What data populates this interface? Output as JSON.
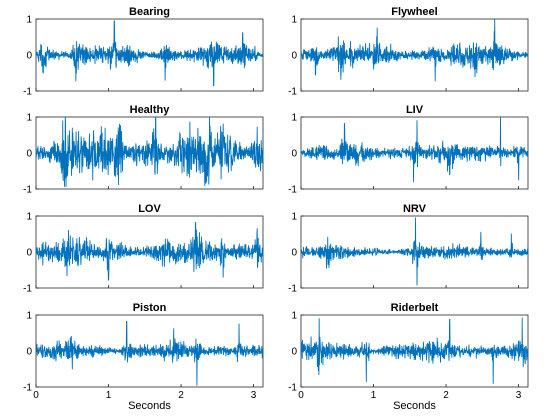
{
  "chart_data": {
    "type": "line",
    "signal_color": "#0072BD",
    "x_ticks": [
      "0",
      "1",
      "2",
      "3"
    ],
    "y_ticks": [
      "-1",
      "0",
      "1"
    ],
    "xlim": [
      0,
      3.13
    ],
    "ylim": [
      -1,
      1
    ],
    "xlabel": "Seconds",
    "grid": false,
    "panels": [
      {
        "title": "Bearing",
        "amplitude": 0.18,
        "spikes": [
          [
            1.08,
            0.95
          ],
          [
            0.55,
            -0.72
          ],
          [
            1.78,
            -0.7
          ],
          [
            2.45,
            -0.85
          ],
          [
            2.85,
            0.62
          ],
          [
            0.1,
            -0.5
          ]
        ]
      },
      {
        "title": "Flywheel",
        "amplitude": 0.2,
        "spikes": [
          [
            2.67,
            0.98
          ],
          [
            0.55,
            -0.68
          ],
          [
            1.05,
            0.75
          ],
          [
            1.85,
            -0.72
          ],
          [
            2.4,
            -0.6
          ],
          [
            0.2,
            -0.55
          ]
        ]
      },
      {
        "title": "Healthy",
        "amplitude": 0.42,
        "spikes": [
          [
            1.65,
            0.98
          ],
          [
            2.35,
            -0.8
          ],
          [
            0.4,
            -0.7
          ],
          [
            1.15,
            0.8
          ],
          [
            3.05,
            0.72
          ]
        ]
      },
      {
        "title": "LIV",
        "amplitude": 0.17,
        "spikes": [
          [
            0.6,
            0.82
          ],
          [
            1.6,
            0.9
          ],
          [
            1.55,
            -0.8
          ],
          [
            2.75,
            0.98
          ],
          [
            3.0,
            -0.75
          ],
          [
            2.05,
            -0.6
          ]
        ]
      },
      {
        "title": "LOV",
        "amplitude": 0.24,
        "spikes": [
          [
            1.0,
            -0.78
          ],
          [
            2.2,
            0.82
          ],
          [
            2.58,
            -0.7
          ],
          [
            0.45,
            0.6
          ],
          [
            3.05,
            0.65
          ]
        ]
      },
      {
        "title": "NRV",
        "amplitude": 0.12,
        "spikes": [
          [
            1.58,
            0.95
          ],
          [
            1.6,
            -0.92
          ],
          [
            0.35,
            -0.45
          ],
          [
            2.48,
            0.55
          ],
          [
            2.9,
            0.5
          ]
        ]
      },
      {
        "title": "Piston",
        "amplitude": 0.15,
        "spikes": [
          [
            1.25,
            0.82
          ],
          [
            2.22,
            -0.95
          ],
          [
            1.9,
            0.62
          ],
          [
            0.5,
            -0.5
          ],
          [
            2.8,
            0.75
          ]
        ]
      },
      {
        "title": "Riderbelt",
        "amplitude": 0.17,
        "spikes": [
          [
            0.25,
            0.9
          ],
          [
            0.9,
            -0.85
          ],
          [
            2.05,
            0.88
          ],
          [
            2.65,
            -0.9
          ],
          [
            3.05,
            0.92
          ]
        ]
      }
    ]
  }
}
